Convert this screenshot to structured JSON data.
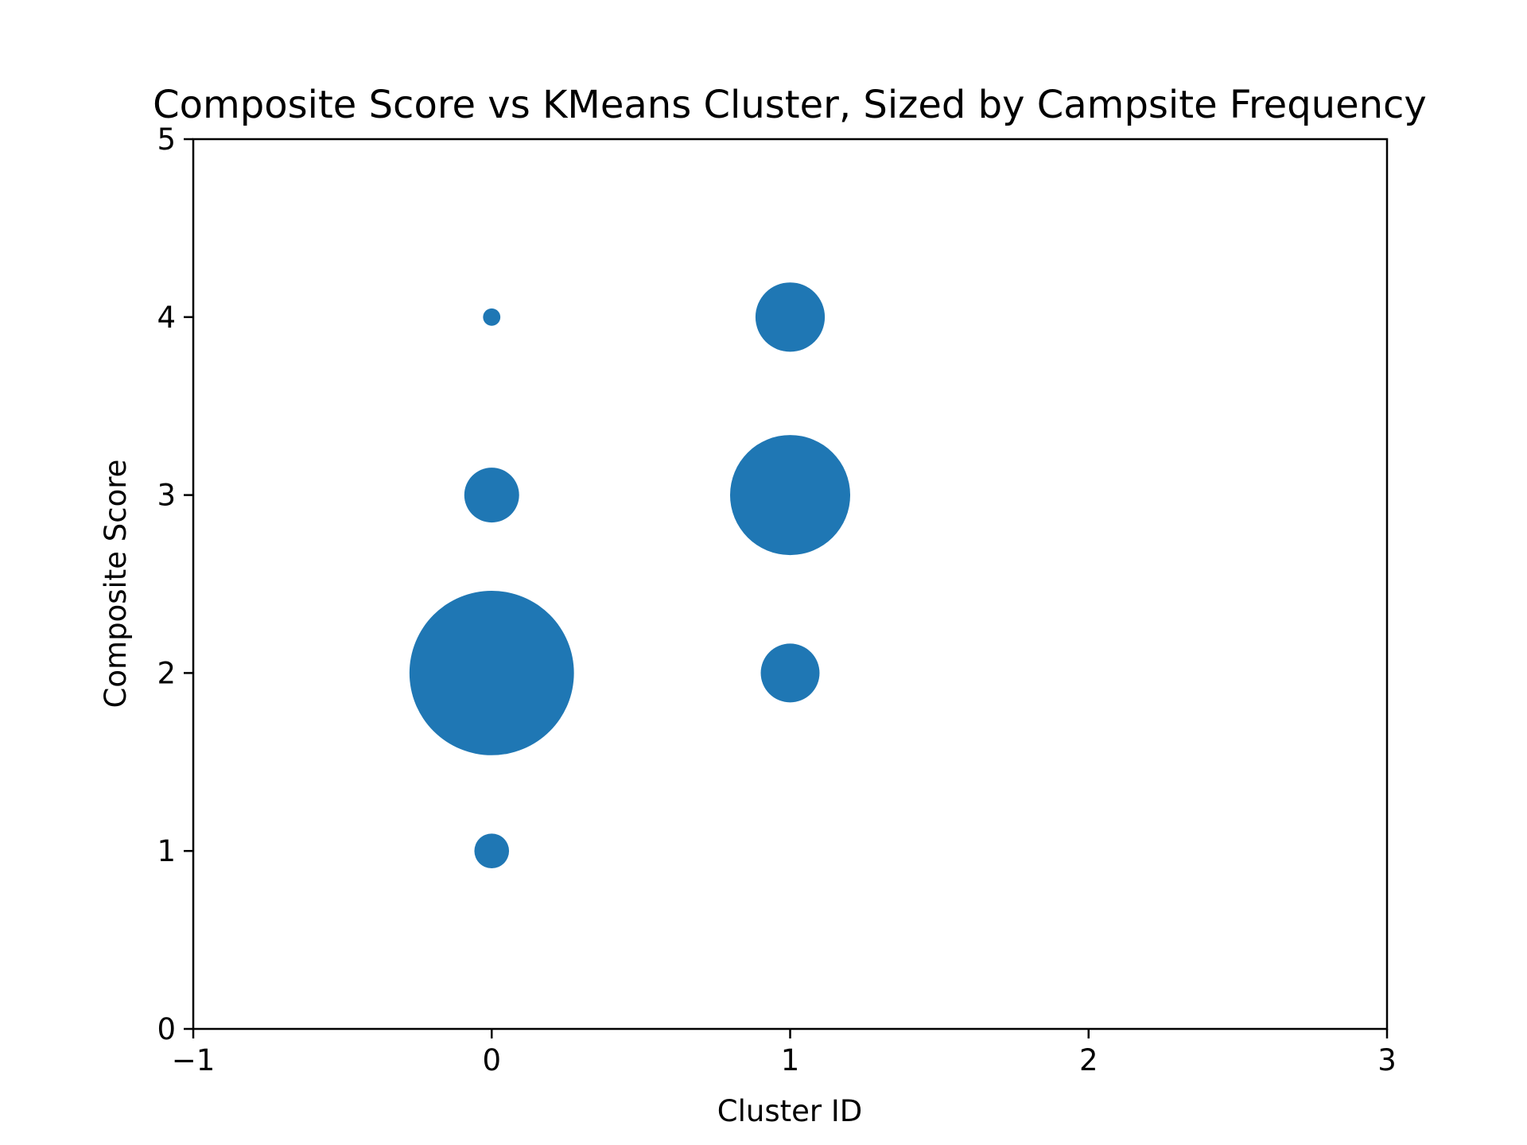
{
  "chart_data": {
    "type": "scatter",
    "title": "Composite Score vs KMeans Cluster, Sized by Campsite Frequency",
    "xlabel": "Cluster ID",
    "ylabel": "Composite Score",
    "xlim": [
      -1,
      3
    ],
    "ylim": [
      0,
      5
    ],
    "xticks": [
      -1,
      0,
      1,
      2,
      3
    ],
    "xtick_labels": [
      "−1",
      "0",
      "1",
      "2",
      "3"
    ],
    "yticks": [
      0,
      1,
      2,
      3,
      4,
      5
    ],
    "ytick_labels": [
      "0",
      "1",
      "2",
      "3",
      "4",
      "5"
    ],
    "grid": false,
    "legend": "none",
    "point_color": "#1f77b4",
    "points": [
      {
        "x": 0,
        "y": 4,
        "size": 1
      },
      {
        "x": 0,
        "y": 3,
        "size": 10
      },
      {
        "x": 0,
        "y": 2,
        "size": 90
      },
      {
        "x": 0,
        "y": 1,
        "size": 4
      },
      {
        "x": 1,
        "y": 4,
        "size": 16
      },
      {
        "x": 1,
        "y": 3,
        "size": 48
      },
      {
        "x": 1,
        "y": 2,
        "size": 11.5
      }
    ]
  }
}
